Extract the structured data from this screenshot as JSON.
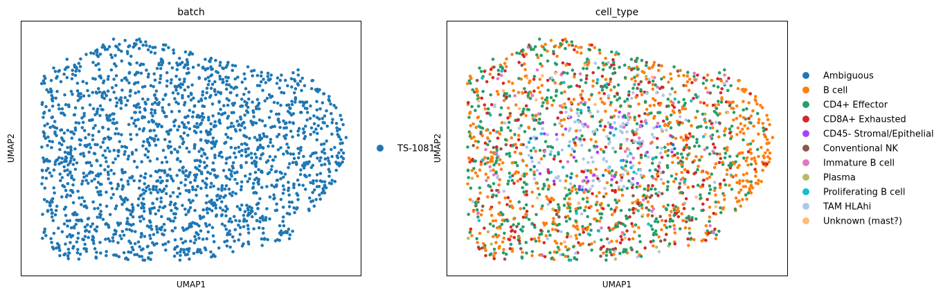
{
  "chart_data": [
    {
      "type": "scatter",
      "title": "batch",
      "xlabel": "UMAP1",
      "ylabel": "UMAP2",
      "grid": false,
      "ticks": "none",
      "legend_placement": "right",
      "xlim": [
        0,
        10
      ],
      "ylim": [
        0,
        7.5
      ],
      "point_count": 2000,
      "legend": [
        {
          "name": "TS-1081",
          "color": "#1f77b4"
        }
      ]
    },
    {
      "type": "scatter",
      "title": "cell_type",
      "xlabel": "UMAP1",
      "ylabel": "UMAP2",
      "grid": false,
      "ticks": "none",
      "legend_placement": "right",
      "xlim": [
        0,
        10
      ],
      "ylim": [
        0,
        7.5
      ],
      "point_count": 2000,
      "legend": [
        {
          "name": "Ambiguous",
          "color": "#1f77b4"
        },
        {
          "name": "B cell",
          "color": "#ff7f0e"
        },
        {
          "name": "CD4+ Effector",
          "color": "#279e68"
        },
        {
          "name": "CD8A+ Exhausted",
          "color": "#d62728"
        },
        {
          "name": "CD45- Stromal/Epithelial",
          "color": "#aa40fc"
        },
        {
          "name": "Conventional NK",
          "color": "#8c564b"
        },
        {
          "name": "Immature B cell",
          "color": "#e377c2"
        },
        {
          "name": "Plasma",
          "color": "#b5bd61"
        },
        {
          "name": "Proliferating B cell",
          "color": "#17becf"
        },
        {
          "name": "TAM HLAhi",
          "color": "#aec7e8"
        },
        {
          "name": "Unknown (mast?)",
          "color": "#ffbb78"
        }
      ]
    }
  ]
}
